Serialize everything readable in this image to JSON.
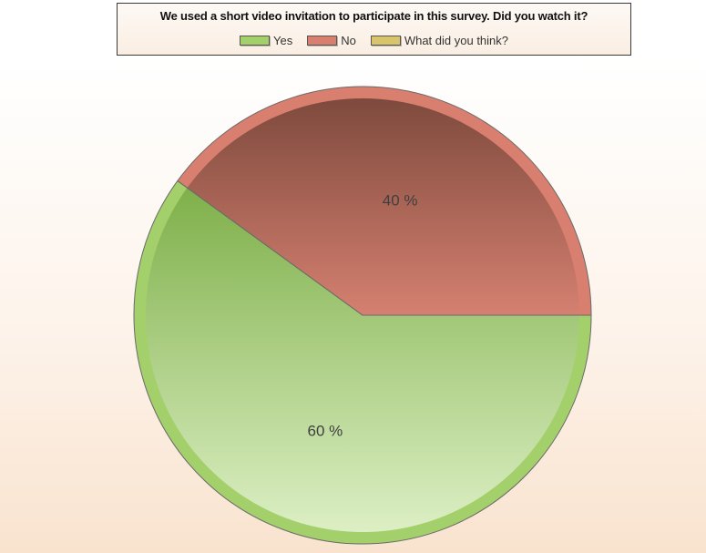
{
  "chart_data": {
    "type": "pie",
    "title": "We used a short video invitation to participate in this survey. Did you watch it?",
    "legend_position": "top",
    "categories": [
      "Yes",
      "No",
      "What did you think?"
    ],
    "values": [
      60,
      40,
      0
    ],
    "labels": [
      "60 %",
      "40 %"
    ],
    "colors": [
      "#a3d06b",
      "#d97f6f",
      "#d8c46a"
    ]
  }
}
